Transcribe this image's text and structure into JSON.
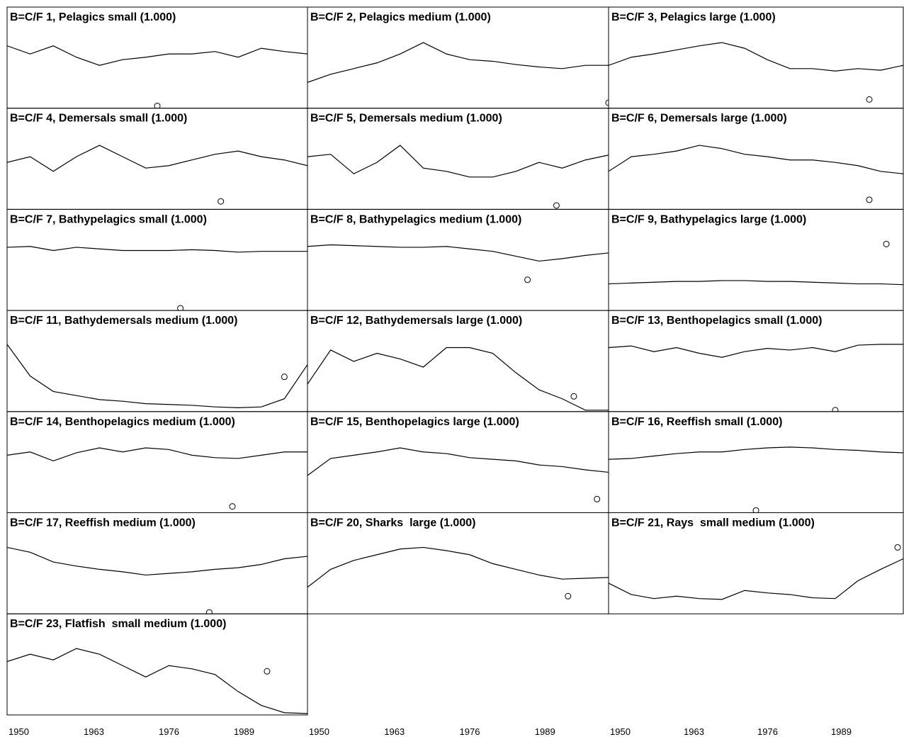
{
  "chart_data": [
    {
      "type": "line",
      "title": "B=C/F 1, Pelagics small (1.000)",
      "x": [
        1950,
        1954,
        1958,
        1962,
        1966,
        1970,
        1974,
        1978,
        1982,
        1986,
        1990,
        1994,
        1998,
        2002
      ],
      "xlim": [
        1950,
        2002
      ],
      "ylim": [
        0,
        100
      ],
      "series": [
        {
          "color": "#000000",
          "values": [
            75,
            65,
            75,
            61,
            51,
            58,
            61,
            65,
            65,
            68,
            61,
            72,
            68,
            65
          ]
        }
      ],
      "point": {
        "x": 1976,
        "y": 1
      }
    },
    {
      "type": "line",
      "title": "B=C/F 2, Pelagics medium (1.000)",
      "x": [
        1950,
        1954,
        1958,
        1962,
        1966,
        1970,
        1974,
        1978,
        1982,
        1986,
        1990,
        1994,
        1998,
        2002
      ],
      "xlim": [
        1950,
        2002
      ],
      "ylim": [
        0,
        100
      ],
      "series": [
        {
          "color": "#000000",
          "values": [
            30,
            40,
            47,
            54,
            65,
            79,
            65,
            58,
            56,
            52,
            49,
            47,
            51,
            51
          ]
        }
      ],
      "point": {
        "x": 2002,
        "y": 5
      }
    },
    {
      "type": "line",
      "title": "B=C/F 3, Pelagics large (1.000)",
      "x": [
        1950,
        1954,
        1958,
        1962,
        1966,
        1970,
        1974,
        1978,
        1982,
        1986,
        1990,
        1994,
        1998,
        2002
      ],
      "xlim": [
        1950,
        2002
      ],
      "ylim": [
        0,
        100
      ],
      "series": [
        {
          "color": "#000000",
          "values": [
            51,
            61,
            65,
            70,
            75,
            79,
            72,
            58,
            47,
            47,
            44,
            47,
            45,
            51
          ]
        }
      ],
      "point": {
        "x": 1996,
        "y": 9
      }
    },
    {
      "type": "line",
      "title": "B=C/F 4, Demersals small (1.000)",
      "x": [
        1950,
        1954,
        1958,
        1962,
        1966,
        1970,
        1974,
        1978,
        1982,
        1986,
        1990,
        1994,
        1998,
        2002
      ],
      "xlim": [
        1950,
        2002
      ],
      "ylim": [
        0,
        100
      ],
      "series": [
        {
          "color": "#000000",
          "values": [
            56,
            63,
            45,
            63,
            77,
            63,
            49,
            52,
            59,
            66,
            70,
            63,
            59,
            52
          ]
        }
      ],
      "point": {
        "x": 1987,
        "y": 8
      }
    },
    {
      "type": "line",
      "title": "B=C/F 5, Demersals medium (1.000)",
      "x": [
        1950,
        1954,
        1958,
        1962,
        1966,
        1970,
        1974,
        1978,
        1982,
        1986,
        1990,
        1994,
        1998,
        2002
      ],
      "xlim": [
        1950,
        2002
      ],
      "ylim": [
        0,
        100
      ],
      "series": [
        {
          "color": "#000000",
          "values": [
            63,
            66,
            42,
            56,
            77,
            49,
            45,
            38,
            38,
            45,
            56,
            49,
            59,
            65
          ]
        }
      ],
      "point": {
        "x": 1993,
        "y": 3
      }
    },
    {
      "type": "line",
      "title": "B=C/F 6, Demersals large (1.000)",
      "x": [
        1950,
        1954,
        1958,
        1962,
        1966,
        1970,
        1974,
        1978,
        1982,
        1986,
        1990,
        1994,
        1998,
        2002
      ],
      "xlim": [
        1950,
        2002
      ],
      "ylim": [
        0,
        100
      ],
      "series": [
        {
          "color": "#000000",
          "values": [
            45,
            63,
            66,
            70,
            77,
            73,
            66,
            63,
            59,
            59,
            56,
            52,
            45,
            42
          ]
        }
      ],
      "point": {
        "x": 1996,
        "y": 10
      }
    },
    {
      "type": "line",
      "title": "B=C/F 7, Bathypelagics small (1.000)",
      "x": [
        1950,
        1954,
        1958,
        1962,
        1966,
        1970,
        1974,
        1978,
        1982,
        1986,
        1990,
        1994,
        1998,
        2002
      ],
      "xlim": [
        1950,
        2002
      ],
      "ylim": [
        0,
        100
      ],
      "series": [
        {
          "color": "#000000",
          "values": [
            76,
            77,
            72,
            76,
            74,
            72,
            72,
            72,
            73,
            72,
            70,
            71,
            71,
            71
          ]
        }
      ],
      "point": {
        "x": 1980,
        "y": 1
      }
    },
    {
      "type": "line",
      "title": "B=C/F 8, Bathypelagics medium (1.000)",
      "x": [
        1950,
        1954,
        1958,
        1962,
        1966,
        1970,
        1974,
        1978,
        1982,
        1986,
        1990,
        1994,
        1998,
        2002
      ],
      "xlim": [
        1950,
        2002
      ],
      "ylim": [
        0,
        100
      ],
      "series": [
        {
          "color": "#000000",
          "values": [
            77,
            79,
            78,
            77,
            76,
            76,
            77,
            74,
            71,
            65,
            59,
            62,
            66,
            69
          ]
        }
      ],
      "point": {
        "x": 1988,
        "y": 36
      }
    },
    {
      "type": "line",
      "title": "B=C/F 9, Bathypelagics large (1.000)",
      "x": [
        1950,
        1954,
        1958,
        1962,
        1966,
        1970,
        1974,
        1978,
        1982,
        1986,
        1990,
        1994,
        1998,
        2002
      ],
      "xlim": [
        1950,
        2002
      ],
      "ylim": [
        0,
        100
      ],
      "series": [
        {
          "color": "#000000",
          "values": [
            31,
            32,
            33,
            34,
            34,
            35,
            35,
            34,
            34,
            33,
            32,
            31,
            31,
            30
          ]
        }
      ],
      "point": {
        "x": 1999,
        "y": 80
      }
    },
    {
      "type": "line",
      "title": "B=C/F 11, Bathydemersals medium (1.000)",
      "x": [
        1950,
        1954,
        1958,
        1962,
        1966,
        1970,
        1974,
        1978,
        1982,
        1986,
        1990,
        1994,
        1998,
        2002
      ],
      "xlim": [
        1950,
        2002
      ],
      "ylim": [
        0,
        100
      ],
      "series": [
        {
          "color": "#000000",
          "values": [
            81,
            42,
            23,
            18,
            13,
            11,
            8,
            7,
            6,
            4,
            3,
            4,
            14,
            56
          ]
        }
      ],
      "point": {
        "x": 1998,
        "y": 41
      }
    },
    {
      "type": "line",
      "title": "B=C/F 12, Bathydemersals large (1.000)",
      "x": [
        1950,
        1954,
        1958,
        1962,
        1966,
        1970,
        1974,
        1978,
        1982,
        1986,
        1990,
        1994,
        1998,
        2002
      ],
      "xlim": [
        1950,
        2002
      ],
      "ylim": [
        0,
        100
      ],
      "series": [
        {
          "color": "#000000",
          "values": [
            32,
            74,
            60,
            70,
            63,
            53,
            77,
            77,
            70,
            46,
            25,
            14,
            0,
            0
          ]
        }
      ],
      "point": {
        "x": 1996,
        "y": 17
      }
    },
    {
      "type": "line",
      "title": "B=C/F 13, Benthopelagics small (1.000)",
      "x": [
        1950,
        1954,
        1958,
        1962,
        1966,
        1970,
        1974,
        1978,
        1982,
        1986,
        1990,
        1994,
        1998,
        2002
      ],
      "xlim": [
        1950,
        2002
      ],
      "ylim": [
        0,
        100
      ],
      "series": [
        {
          "color": "#000000",
          "values": [
            77,
            79,
            72,
            77,
            70,
            65,
            72,
            76,
            74,
            77,
            72,
            80,
            81,
            81
          ]
        }
      ],
      "point": {
        "x": 1990,
        "y": 0
      }
    },
    {
      "type": "line",
      "title": "B=C/F 14, Benthopelagics medium (1.000)",
      "x": [
        1950,
        1954,
        1958,
        1962,
        1966,
        1970,
        1974,
        1978,
        1982,
        1986,
        1990,
        1994,
        1998,
        2002
      ],
      "xlim": [
        1950,
        2002
      ],
      "ylim": [
        0,
        100
      ],
      "series": [
        {
          "color": "#000000",
          "values": [
            69,
            73,
            62,
            72,
            78,
            73,
            78,
            76,
            69,
            66,
            65,
            69,
            73,
            73
          ]
        }
      ],
      "point": {
        "x": 1989,
        "y": 6
      }
    },
    {
      "type": "line",
      "title": "B=C/F 15, Benthopelagics large (1.000)",
      "x": [
        1950,
        1954,
        1958,
        1962,
        1966,
        1970,
        1974,
        1978,
        1982,
        1986,
        1990,
        1994,
        1998,
        2002
      ],
      "xlim": [
        1950,
        2002
      ],
      "ylim": [
        0,
        100
      ],
      "series": [
        {
          "color": "#000000",
          "values": [
            44,
            65,
            69,
            73,
            78,
            73,
            71,
            66,
            64,
            62,
            57,
            55,
            51,
            48
          ]
        }
      ],
      "point": {
        "x": 2000,
        "y": 15
      }
    },
    {
      "type": "line",
      "title": "B=C/F 16, Reeffish small (1.000)",
      "x": [
        1950,
        1954,
        1958,
        1962,
        1966,
        1970,
        1974,
        1978,
        1982,
        1986,
        1990,
        1994,
        1998,
        2002
      ],
      "xlim": [
        1950,
        2002
      ],
      "ylim": [
        0,
        100
      ],
      "series": [
        {
          "color": "#000000",
          "values": [
            64,
            65,
            68,
            71,
            73,
            73,
            76,
            78,
            79,
            78,
            76,
            75,
            73,
            72
          ]
        }
      ],
      "point": {
        "x": 1976,
        "y": 1
      }
    },
    {
      "type": "line",
      "title": "B=C/F 17, Reeffish medium (1.000)",
      "x": [
        1950,
        1954,
        1958,
        1962,
        1966,
        1970,
        1974,
        1978,
        1982,
        1986,
        1990,
        1994,
        1998,
        2002
      ],
      "xlim": [
        1950,
        2002
      ],
      "ylim": [
        0,
        100
      ],
      "series": [
        {
          "color": "#000000",
          "values": [
            80,
            74,
            62,
            57,
            53,
            50,
            46,
            48,
            50,
            53,
            55,
            59,
            66,
            69
          ]
        }
      ],
      "point": {
        "x": 1985,
        "y": 0
      }
    },
    {
      "type": "line",
      "title": "B=C/F 20, Sharks  large (1.000)",
      "x": [
        1950,
        1954,
        1958,
        1962,
        1966,
        1970,
        1974,
        1978,
        1982,
        1986,
        1990,
        1994,
        1998,
        2002
      ],
      "xlim": [
        1950,
        2002
      ],
      "ylim": [
        0,
        100
      ],
      "series": [
        {
          "color": "#000000",
          "values": [
            31,
            53,
            64,
            71,
            78,
            80,
            76,
            71,
            60,
            53,
            46,
            41,
            42,
            43
          ]
        }
      ],
      "point": {
        "x": 1995,
        "y": 20
      },
      "xticks": [
        1950,
        1963,
        1976,
        1989
      ]
    },
    {
      "type": "line",
      "title": "B=C/F 21, Rays  small medium (1.000)",
      "x": [
        1950,
        1954,
        1958,
        1962,
        1966,
        1970,
        1974,
        1978,
        1982,
        1986,
        1990,
        1994,
        1998,
        2002
      ],
      "xlim": [
        1950,
        2002
      ],
      "ylim": [
        0,
        100
      ],
      "series": [
        {
          "color": "#000000",
          "values": [
            36,
            22,
            17,
            20,
            17,
            16,
            27,
            24,
            22,
            18,
            17,
            39,
            53,
            66
          ]
        }
      ],
      "point": {
        "x": 2001,
        "y": 80
      },
      "xticks": [
        1950,
        1963,
        1976,
        1989
      ]
    },
    {
      "type": "line",
      "title": "B=C/F 23, Flatfish  small medium (1.000)",
      "x": [
        1950,
        1954,
        1958,
        1962,
        1966,
        1970,
        1974,
        1978,
        1982,
        1986,
        1990,
        1994,
        1998,
        2002
      ],
      "xlim": [
        1950,
        2002
      ],
      "ylim": [
        0,
        100
      ],
      "series": [
        {
          "color": "#000000",
          "values": [
            64,
            73,
            66,
            80,
            73,
            59,
            45,
            59,
            55,
            48,
            27,
            10,
            1,
            0
          ]
        }
      ],
      "point": {
        "x": 1995,
        "y": 52
      },
      "xticks": [
        1950,
        1963,
        1976,
        1989
      ]
    }
  ]
}
